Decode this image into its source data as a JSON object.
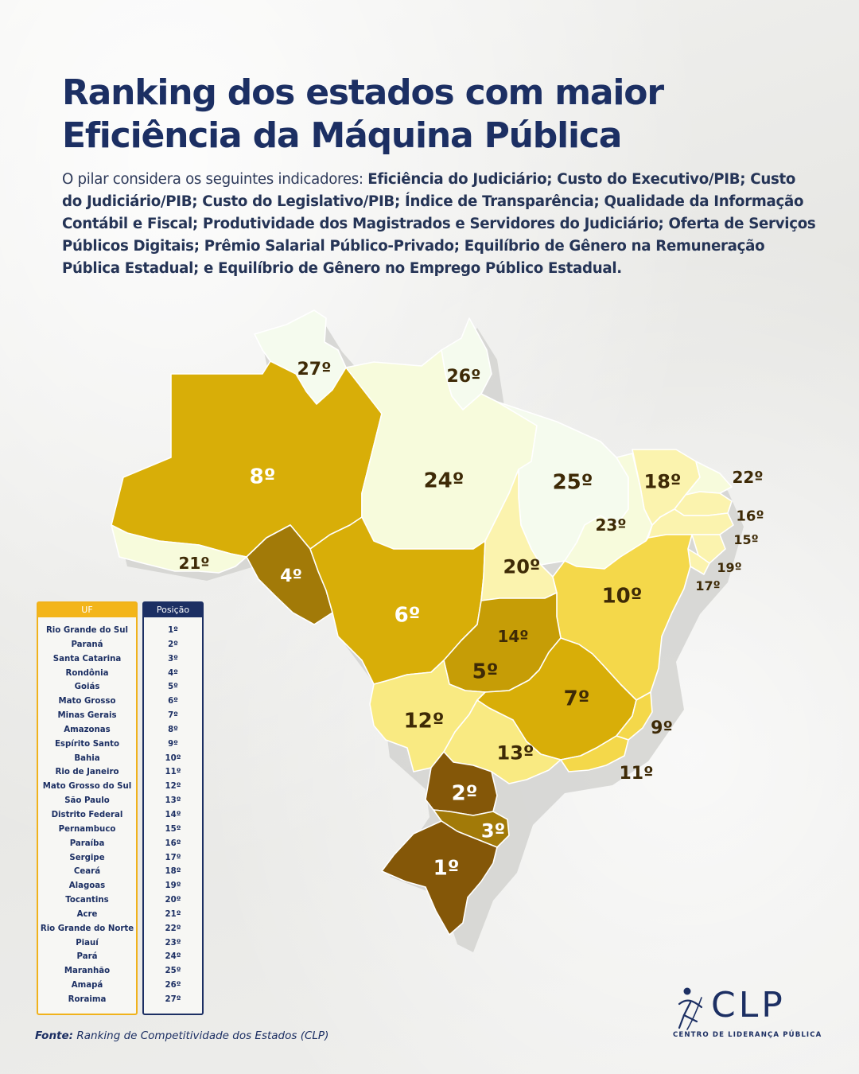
{
  "title": {
    "line1": "Ranking dos estados com maior",
    "line2": "Eficiência da Máquina Pública"
  },
  "intro": {
    "prefix": "O pilar considera os seguintes indicadores: ",
    "indicators": "Eficiência do Judiciário; Custo do Executivo/PIB; Custo do Judiciário/PIB; Custo do Legislativo/PIB; Índice de Transparência; Qualidade da Informação Contábil e Fiscal; Produtividade dos Magistrados e Servidores do Judiciário; Oferta de Serviços Públicos Digitais; Prêmio Salarial Público-Privado; Equilíbrio de Gênero na Remuneração Pública Estadual; e Equilíbrio de Gênero no Emprego Público Estadual."
  },
  "table": {
    "header_uf": "UF",
    "header_pos": "Posição",
    "rows": [
      {
        "state": "Rio Grande do Sul",
        "pos": "1º"
      },
      {
        "state": "Paraná",
        "pos": "2º"
      },
      {
        "state": "Santa Catarina",
        "pos": "3º"
      },
      {
        "state": "Rondônia",
        "pos": "4º"
      },
      {
        "state": "Goiás",
        "pos": "5º"
      },
      {
        "state": "Mato Grosso",
        "pos": "6º"
      },
      {
        "state": "Minas Gerais",
        "pos": "7º"
      },
      {
        "state": "Amazonas",
        "pos": "8º"
      },
      {
        "state": "Espírito Santo",
        "pos": "9º"
      },
      {
        "state": "Bahia",
        "pos": "10º"
      },
      {
        "state": "Rio de Janeiro",
        "pos": "11º"
      },
      {
        "state": "Mato Grosso do Sul",
        "pos": "12º"
      },
      {
        "state": "São Paulo",
        "pos": "13º"
      },
      {
        "state": "Distrito Federal",
        "pos": "14º"
      },
      {
        "state": "Pernambuco",
        "pos": "15º"
      },
      {
        "state": "Paraíba",
        "pos": "16º"
      },
      {
        "state": "Sergipe",
        "pos": "17º"
      },
      {
        "state": "Ceará",
        "pos": "18º"
      },
      {
        "state": "Alagoas",
        "pos": "19º"
      },
      {
        "state": "Tocantins",
        "pos": "20º"
      },
      {
        "state": "Acre",
        "pos": "21º"
      },
      {
        "state": "Rio Grande do Norte",
        "pos": "22º"
      },
      {
        "state": "Piauí",
        "pos": "23º"
      },
      {
        "state": "Pará",
        "pos": "24º"
      },
      {
        "state": "Maranhão",
        "pos": "25º"
      },
      {
        "state": "Amapá",
        "pos": "26º"
      },
      {
        "state": "Roraima",
        "pos": "27º"
      }
    ]
  },
  "map": {
    "icon": "brazil-states-map",
    "regions": [
      {
        "state": "Roraima",
        "label": "27º",
        "rank": 27
      },
      {
        "state": "Amapá",
        "label": "26º",
        "rank": 26
      },
      {
        "state": "Amazonas",
        "label": "8º",
        "rank": 8
      },
      {
        "state": "Pará",
        "label": "24º",
        "rank": 24
      },
      {
        "state": "Maranhão",
        "label": "25º",
        "rank": 25
      },
      {
        "state": "Ceará",
        "label": "18º",
        "rank": 18
      },
      {
        "state": "Rio Grande do Norte",
        "label": "22º",
        "rank": 22
      },
      {
        "state": "Paraíba",
        "label": "16º",
        "rank": 16
      },
      {
        "state": "Pernambuco",
        "label": "15º",
        "rank": 15
      },
      {
        "state": "Alagoas",
        "label": "19º",
        "rank": 19
      },
      {
        "state": "Sergipe",
        "label": "17º",
        "rank": 17
      },
      {
        "state": "Piauí",
        "label": "23º",
        "rank": 23
      },
      {
        "state": "Acre",
        "label": "21º",
        "rank": 21
      },
      {
        "state": "Rondônia",
        "label": "4º",
        "rank": 4
      },
      {
        "state": "Mato Grosso",
        "label": "6º",
        "rank": 6
      },
      {
        "state": "Tocantins",
        "label": "20º",
        "rank": 20
      },
      {
        "state": "Bahia",
        "label": "10º",
        "rank": 10
      },
      {
        "state": "Distrito Federal",
        "label": "14º",
        "rank": 14
      },
      {
        "state": "Goiás",
        "label": "5º",
        "rank": 5
      },
      {
        "state": "Minas Gerais",
        "label": "7º",
        "rank": 7
      },
      {
        "state": "Mato Grosso do Sul",
        "label": "12º",
        "rank": 12
      },
      {
        "state": "São Paulo",
        "label": "13º",
        "rank": 13
      },
      {
        "state": "Espírito Santo",
        "label": "9º",
        "rank": 9
      },
      {
        "state": "Rio de Janeiro",
        "label": "11º",
        "rank": 11
      },
      {
        "state": "Paraná",
        "label": "2º",
        "rank": 2
      },
      {
        "state": "Santa Catarina",
        "label": "3º",
        "rank": 3
      },
      {
        "state": "Rio Grande do Sul",
        "label": "1º",
        "rank": 1
      }
    ],
    "colors": {
      "tier_1": "#845708",
      "tier_2": "#a27a08",
      "tier_3": "#c69d06",
      "tier_4": "#d8ae08",
      "tier_5": "#e6c20e",
      "tier_6": "#f4d84a",
      "tier_7": "#f9ea82",
      "tier_8": "#fbf3ae",
      "tier_9": "#f7fbdc",
      "tier_10": "#f5fbee",
      "label_dark": "#3e2a06",
      "label_light": "#ffffff"
    }
  },
  "source": {
    "label": "Fonte:",
    "text": " Ranking de Competitividade dos Estados (CLP)"
  },
  "logo": {
    "icon": "clp-figure-logo",
    "text": "CLP",
    "subtitle": "CENTRO DE LIDERANÇA PÚBLICA"
  }
}
